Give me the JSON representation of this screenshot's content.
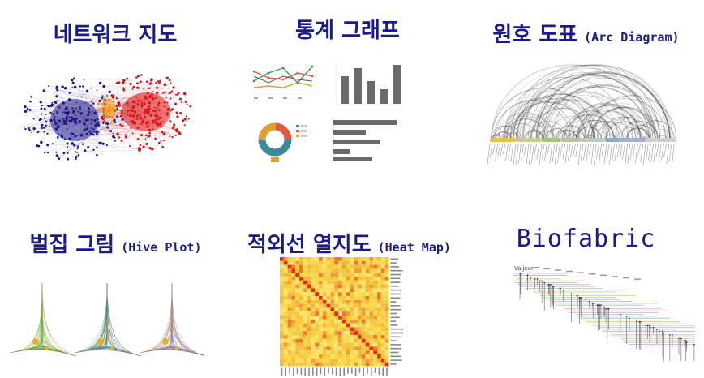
{
  "panels": [
    {
      "id": "network",
      "title": "네트워크 지도",
      "subtitle": ""
    },
    {
      "id": "stats",
      "title": "통계 그래프",
      "subtitle": ""
    },
    {
      "id": "arc",
      "title": "원호 도표",
      "subtitle": "(Arc Diagram)"
    },
    {
      "id": "hive",
      "title": "벌집 그림",
      "subtitle": "(Hive Plot)"
    },
    {
      "id": "heatmap",
      "title": "적외선 열지도",
      "subtitle": "(Heat Map)"
    },
    {
      "id": "biofabric",
      "title": "Biofabric",
      "subtitle": ""
    }
  ],
  "biofabric_header": "Valjean",
  "colors": {
    "title": "#1a1a8c",
    "network_blue": "#1a1a8c",
    "network_red": "#e01010",
    "network_orange": "#f0a020",
    "heat_diag": "#e03010",
    "heat_base": "#f6d84a"
  }
}
